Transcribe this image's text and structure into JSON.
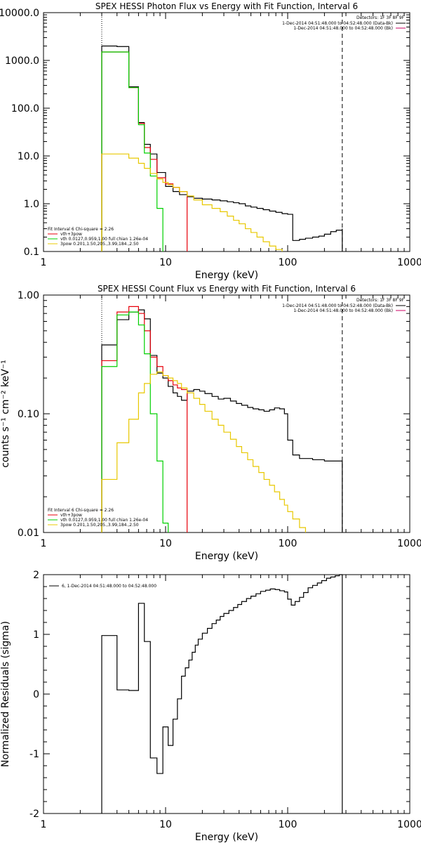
{
  "chart_data": [
    {
      "type": "line",
      "title": "SPEX HESSI Photon Flux vs Energy with Fit Function, Interval 6",
      "xlabel": "Energy (keV)",
      "ylabel": "",
      "xscale": "log",
      "yscale": "log",
      "xlim": [
        1,
        1000
      ],
      "ylim": [
        0.1,
        10000
      ],
      "x_ticks": [
        1,
        10,
        100,
        1000
      ],
      "x_tick_labels": [
        "1",
        "10",
        "100",
        "1000"
      ],
      "y_ticks": [
        0.1,
        1,
        10,
        100,
        1000,
        10000
      ],
      "y_tick_labels": [
        "0.1",
        "1.0",
        "10.0",
        "100.0",
        "1000.0",
        "10000.0"
      ],
      "vlines": [
        {
          "x": 3,
          "style": "dotted"
        },
        {
          "x": 280,
          "style": "dashed"
        }
      ],
      "legend_top": {
        "position": "top-right",
        "header": "Detectors: 1F 3F 8F 9F",
        "entries": [
          {
            "text": "1-Dec-2014 04:51:48.000 to 04:52:48.000 (Data-Bk)",
            "color": "#000000"
          },
          {
            "text": "1-Dec-2014 04:51:48.000 to 04:52:48.000 (Bk)",
            "color": "#cc0066"
          }
        ]
      },
      "legend_bottom": {
        "position": "bottom-left",
        "header": "Fit Interval 6   Chi-square = 2.26",
        "entries": [
          {
            "text": "vth+3pow",
            "color": "#e8000b"
          },
          {
            "text": "vth 0.0127,0.959,1.00  full chian 1.26e-04",
            "color": "#00d000"
          },
          {
            "text": "3pow 0.201,1.50,205.,3.99,184.,2.50",
            "color": "#e8c800"
          }
        ]
      },
      "series": [
        {
          "name": "Data-Bk",
          "color": "#000000",
          "x": [
            3,
            4,
            5,
            6,
            6.7,
            7.5,
            8.5,
            10,
            11.5,
            13,
            15,
            17,
            20,
            24,
            28,
            32,
            36,
            40,
            45,
            50,
            56,
            63,
            71,
            80,
            90,
            100,
            110,
            125,
            140,
            160,
            180,
            200,
            225,
            250,
            280
          ],
          "y": [
            2000,
            1950,
            280,
            50,
            17.5,
            11,
            4.5,
            2.3,
            1.8,
            1.55,
            1.4,
            1.3,
            1.25,
            1.2,
            1.15,
            1.1,
            1.05,
            1,
            0.9,
            0.85,
            0.8,
            0.75,
            0.7,
            0.66,
            0.62,
            0.6,
            0.17,
            0.18,
            0.19,
            0.2,
            0.21,
            0.23,
            0.26,
            0.28,
            0.3
          ]
        },
        {
          "name": "vth+3pow",
          "color": "#e8000b",
          "x": [
            3,
            4,
            5,
            6,
            6.7,
            7.5,
            8.5,
            10,
            11.5,
            13,
            15
          ],
          "y": [
            1500,
            1500,
            270,
            48,
            15,
            8.5,
            3.5,
            2.6,
            2.2,
            1.8,
            1.5
          ]
        },
        {
          "name": "vth",
          "color": "#00d000",
          "x": [
            3,
            4,
            5,
            6,
            6.7,
            7.5,
            8.5,
            9.5
          ],
          "y": [
            1500,
            1500,
            270,
            45,
            11.5,
            3.8,
            0.8,
            0.1
          ]
        },
        {
          "name": "3pow",
          "color": "#e8c800",
          "x": [
            3,
            4,
            5,
            6,
            6.7,
            7.5,
            8.5,
            9.5,
            10.5,
            11.5,
            13,
            15,
            17,
            20,
            24,
            28,
            32,
            36,
            40,
            45,
            50,
            56,
            63,
            71,
            80,
            90
          ],
          "y": [
            11,
            11,
            9,
            7,
            5.5,
            4.3,
            3.3,
            2.8,
            2.5,
            2.2,
            1.8,
            1.45,
            1.2,
            0.95,
            0.8,
            0.68,
            0.55,
            0.45,
            0.38,
            0.3,
            0.25,
            0.2,
            0.16,
            0.13,
            0.11,
            0.1
          ]
        }
      ]
    },
    {
      "type": "line",
      "title": "SPEX HESSI Count Flux vs Energy with Fit Function, Interval 6",
      "xlabel": "Energy (keV)",
      "ylabel": "counts s⁻¹ cm⁻² keV⁻¹",
      "xscale": "log",
      "yscale": "log",
      "xlim": [
        1,
        1000
      ],
      "ylim": [
        0.01,
        1
      ],
      "x_ticks": [
        1,
        10,
        100,
        1000
      ],
      "x_tick_labels": [
        "1",
        "10",
        "100",
        "1000"
      ],
      "y_ticks": [
        0.01,
        0.1,
        1
      ],
      "y_tick_labels": [
        "0.01",
        "0.10",
        "1.00"
      ],
      "vlines": [
        {
          "x": 3,
          "style": "dotted"
        },
        {
          "x": 280,
          "style": "dashed"
        }
      ],
      "legend_top": {
        "position": "top-right",
        "header": "Detectors: 1F 3F 8F 9F",
        "entries": [
          {
            "text": "1-Dec-2014 04:51:48.000 to 04:52:48.000 (Data-Bk)",
            "color": "#000000"
          },
          {
            "text": "1-Dec-2014 04:51:48.000 to 04:52:48.000 (Bk)",
            "color": "#cc0066"
          }
        ]
      },
      "legend_bottom": {
        "position": "bottom-left",
        "header": "Fit Interval 6   Chi-square = 2.26",
        "entries": [
          {
            "text": "vth+3pow",
            "color": "#e8000b"
          },
          {
            "text": "vth 0.0127,0.959,1.00  full chian 1.26e-04",
            "color": "#00d000"
          },
          {
            "text": "3pow 0.201,1.50,205.,3.99,184.,2.50",
            "color": "#e8c800"
          }
        ]
      },
      "series": [
        {
          "name": "Data-Bk",
          "color": "#000000",
          "x": [
            3,
            4,
            5,
            6,
            6.7,
            7.5,
            8.5,
            9.5,
            10.5,
            11.5,
            12.5,
            13.5,
            15,
            17,
            19,
            21,
            24,
            27,
            30,
            34,
            38,
            42,
            47,
            52,
            58,
            64,
            71,
            78,
            86,
            94,
            100,
            110,
            125,
            140,
            160,
            180,
            200,
            225,
            250,
            280
          ],
          "y": [
            0.38,
            0.62,
            0.72,
            0.75,
            0.63,
            0.31,
            0.22,
            0.2,
            0.17,
            0.15,
            0.14,
            0.13,
            0.155,
            0.16,
            0.155,
            0.148,
            0.14,
            0.133,
            0.135,
            0.128,
            0.122,
            0.118,
            0.113,
            0.11,
            0.108,
            0.105,
            0.108,
            0.112,
            0.11,
            0.1,
            0.06,
            0.045,
            0.042,
            0.042,
            0.041,
            0.041,
            0.04,
            0.04,
            0.04,
            0.039
          ]
        },
        {
          "name": "vth+3pow",
          "color": "#e8000b",
          "x": [
            3,
            4,
            5,
            6,
            6.7,
            7.5,
            8.5,
            9.5,
            10.5,
            11.5,
            12.5,
            13.5,
            15
          ],
          "y": [
            0.28,
            0.72,
            0.8,
            0.7,
            0.5,
            0.3,
            0.25,
            0.21,
            0.19,
            0.175,
            0.165,
            0.16,
            0.155
          ]
        },
        {
          "name": "vth",
          "color": "#00d000",
          "x": [
            3,
            4,
            5,
            6,
            6.7,
            7.5,
            8.5,
            9.5,
            10.5
          ],
          "y": [
            0.25,
            0.68,
            0.72,
            0.56,
            0.32,
            0.1,
            0.04,
            0.012,
            0.01
          ]
        },
        {
          "name": "3pow",
          "color": "#e8c800",
          "x": [
            3,
            4,
            5,
            6,
            6.7,
            7.5,
            8.5,
            9.5,
            10.5,
            11.5,
            12.5,
            13.5,
            15,
            17,
            19,
            21,
            24,
            27,
            30,
            34,
            38,
            42,
            47,
            52,
            58,
            64,
            71,
            78,
            86,
            94,
            100,
            110,
            125,
            140
          ],
          "y": [
            0.028,
            0.057,
            0.09,
            0.15,
            0.18,
            0.215,
            0.225,
            0.21,
            0.2,
            0.19,
            0.18,
            0.165,
            0.15,
            0.135,
            0.12,
            0.105,
            0.09,
            0.08,
            0.07,
            0.061,
            0.053,
            0.047,
            0.041,
            0.036,
            0.032,
            0.028,
            0.025,
            0.022,
            0.019,
            0.017,
            0.015,
            0.013,
            0.011,
            0.01
          ]
        }
      ]
    },
    {
      "type": "line",
      "title": "",
      "xlabel": "Energy (keV)",
      "ylabel": "Normalized Residuals (sigma)",
      "xscale": "log",
      "yscale": "linear",
      "xlim": [
        1,
        1000
      ],
      "ylim": [
        -2,
        2
      ],
      "x_ticks": [
        1,
        10,
        100,
        1000
      ],
      "x_tick_labels": [
        "1",
        "10",
        "100",
        "1000"
      ],
      "y_ticks": [
        -2,
        -1,
        0,
        1,
        2
      ],
      "y_tick_labels": [
        "-2",
        "-1",
        "0",
        "1",
        "2"
      ],
      "legend": {
        "position": "top-left",
        "entries": [
          {
            "text": "6,  1-Dec-2014 04:51:48.000 to 04:52:48.000",
            "color": "#000000"
          }
        ]
      },
      "series": [
        {
          "name": "6",
          "color": "#000000",
          "x": [
            3,
            4,
            5,
            6,
            6.7,
            7.5,
            8.5,
            9.5,
            10.5,
            11.5,
            12.5,
            13.5,
            14.5,
            15.5,
            16.5,
            17.5,
            18.5,
            20,
            22,
            24,
            26,
            28,
            30,
            33,
            36,
            39,
            42,
            46,
            50,
            55,
            60,
            66,
            72,
            79,
            86,
            94,
            100,
            107,
            115,
            125,
            135,
            147,
            160,
            175,
            190,
            208,
            225,
            245,
            265,
            280
          ],
          "y": [
            0.98,
            0.07,
            0.06,
            1.52,
            0.88,
            -1.07,
            -1.33,
            -0.55,
            -0.86,
            -0.42,
            -0.08,
            0.3,
            0.44,
            0.57,
            0.7,
            0.82,
            0.92,
            1.02,
            1.1,
            1.18,
            1.24,
            1.3,
            1.35,
            1.4,
            1.45,
            1.5,
            1.55,
            1.6,
            1.64,
            1.68,
            1.72,
            1.74,
            1.76,
            1.75,
            1.73,
            1.71,
            1.59,
            1.49,
            1.55,
            1.62,
            1.7,
            1.78,
            1.82,
            1.86,
            1.9,
            1.94,
            1.96,
            1.98,
            2.0,
            2.0
          ]
        }
      ]
    }
  ]
}
